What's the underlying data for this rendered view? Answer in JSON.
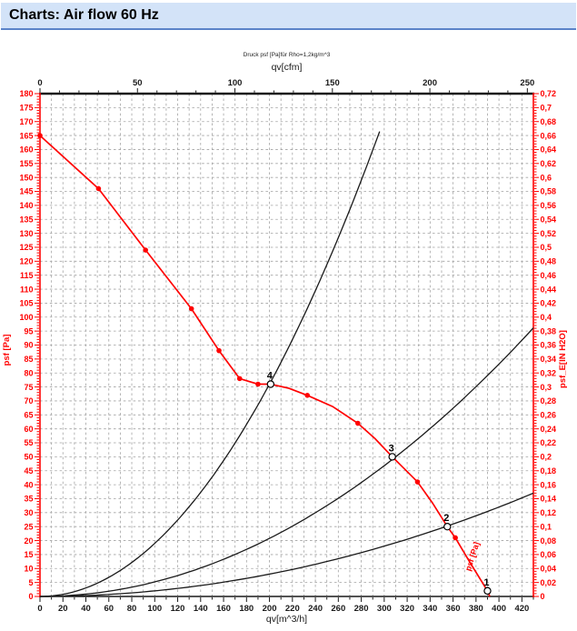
{
  "header": {
    "title": "Charts: Air flow 60 Hz"
  },
  "colors": {
    "header_bg": "#d3e3f8",
    "header_border": "#5b83c9",
    "axis_red": "#ff0000",
    "axis_black": "#1a1a1a",
    "grid": "#a3a3a3",
    "fan_curve": "#ff0000",
    "system_curve": "#1a1a1a",
    "op_circle_fill": "#ffffff",
    "op_circle_stroke": "#000000"
  },
  "chart_data": {
    "type": "line",
    "note": "Druck psf [Pa]für Rho=1,2kg/m^3",
    "axes": {
      "top": {
        "label": "qv[cfm]",
        "min": 0,
        "max": 253.1,
        "major": 50,
        "minor": 10,
        "tick_labels": [
          0,
          50,
          100,
          150,
          200,
          250
        ]
      },
      "bottom": {
        "label": "qv[m^3/h]",
        "min": 0,
        "max": 430,
        "major": 20,
        "minor": 10,
        "label_max": 420
      },
      "left": {
        "label": "psf [Pa]",
        "min": 0,
        "max": 180,
        "major": 5,
        "minor": 1
      },
      "right": {
        "label": "psf_E[IN H2O]",
        "min": 0,
        "max": 0.72,
        "major": 0.02,
        "minor": 0.004,
        "decimal_comma": true
      }
    },
    "grid": {
      "x_step": 10,
      "y_step": 5
    },
    "series": [
      {
        "name": "fan-curve",
        "color": "#ff0000",
        "points": [
          [
            0,
            165
          ],
          [
            51,
            146
          ],
          [
            92,
            124
          ],
          [
            132,
            103
          ],
          [
            156,
            88
          ],
          [
            174,
            78
          ],
          [
            190,
            76
          ],
          [
            201,
            76
          ],
          [
            217,
            74.5
          ],
          [
            233,
            72
          ],
          [
            255,
            68
          ],
          [
            277,
            62
          ],
          [
            292,
            56.5
          ],
          [
            307,
            50
          ],
          [
            318,
            45.5
          ],
          [
            329,
            41
          ],
          [
            342,
            33.5
          ],
          [
            355,
            25
          ],
          [
            362,
            21
          ],
          [
            375,
            12
          ],
          [
            390,
            2
          ],
          [
            392,
            0
          ]
        ],
        "markers": [
          [
            0,
            165
          ],
          [
            51,
            146
          ],
          [
            92,
            124
          ],
          [
            132,
            103
          ],
          [
            156,
            88
          ],
          [
            174,
            78
          ],
          [
            190,
            76
          ],
          [
            233,
            72
          ],
          [
            277,
            62
          ],
          [
            329,
            41
          ],
          [
            362,
            21
          ]
        ]
      },
      {
        "name": "system-curve-4",
        "color": "#1a1a1a",
        "parabola_k": 0.0019,
        "q_max": 296
      },
      {
        "name": "system-curve-3",
        "color": "#1a1a1a",
        "parabola_k": 0.00052,
        "q_max": 430
      },
      {
        "name": "system-curve-2",
        "color": "#1a1a1a",
        "parabola_k": 0.0002,
        "q_max": 430
      }
    ],
    "operating_points": [
      {
        "label": "4",
        "q": 201,
        "p": 76
      },
      {
        "label": "3",
        "q": 307,
        "p": 50
      },
      {
        "label": "2",
        "q": 355,
        "p": 25
      },
      {
        "label": "1",
        "q": 390,
        "p": 2
      }
    ],
    "curve_label": {
      "text": "psf [Pa]",
      "q": 379,
      "p": 14,
      "angle": -72
    }
  }
}
